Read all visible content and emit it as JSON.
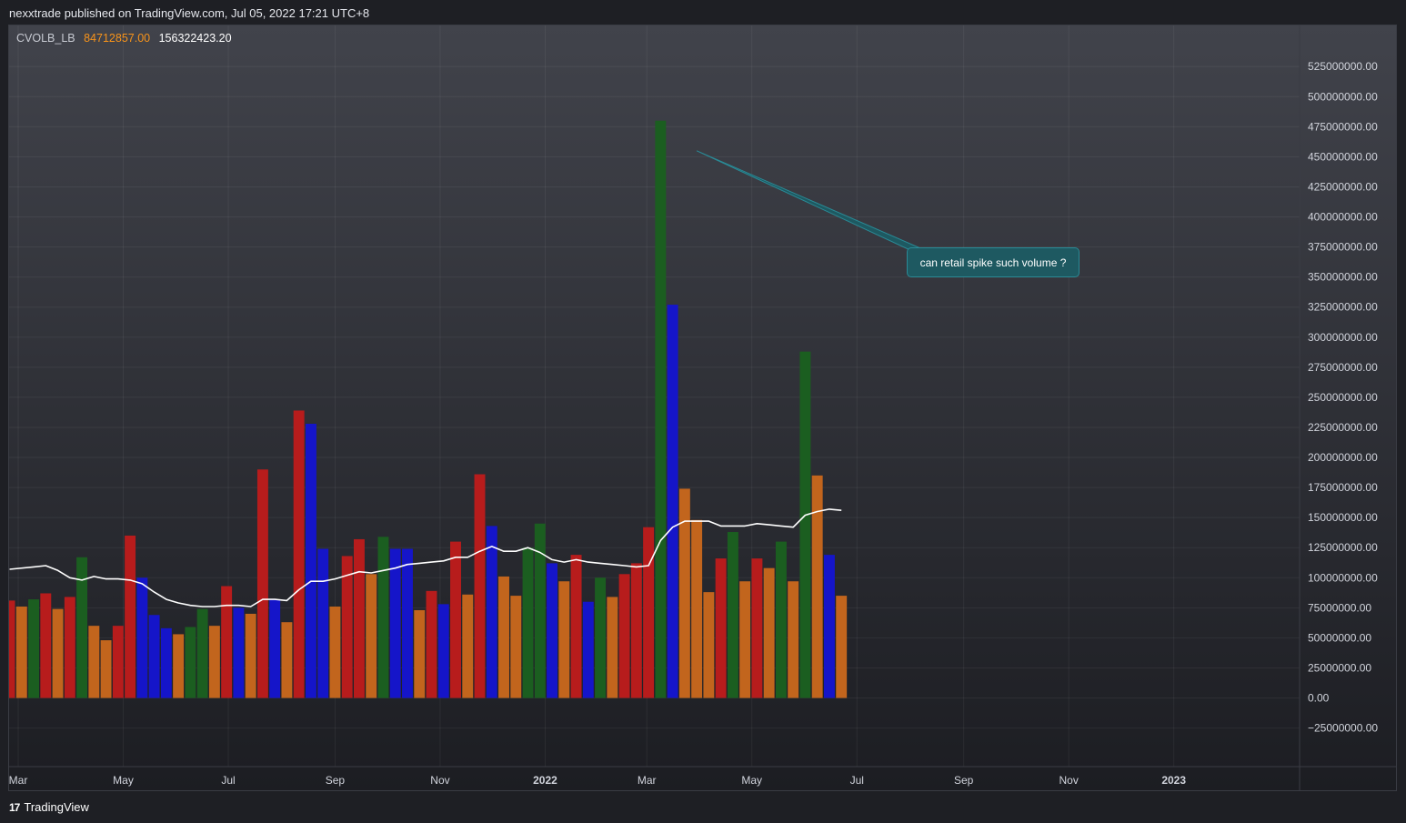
{
  "header": {
    "published": "nexxtrade published on TradingView.com, Jul 05, 2022 17:21 UTC+8"
  },
  "legend": {
    "name": "CVOLB_LB",
    "value1": "84712857.00",
    "value2": "156322423.20"
  },
  "annotation": {
    "text": "can retail spike such volume ?"
  },
  "footer": {
    "logo_mark": "17",
    "logo_text": "TradingView"
  },
  "colors": {
    "red": "#b71c1c",
    "orange": "#c2651d",
    "green": "#1b5e20",
    "blue": "#1515c9",
    "line": "#ffffff",
    "annotation_fill": "#1e5961",
    "annotation_border": "#2a8a96",
    "legend_value1": "#f7931a"
  },
  "chart_data": {
    "type": "bar",
    "title": "CVOLB_LB",
    "x_tick_labels": [
      "Mar",
      "May",
      "Jul",
      "Sep",
      "Nov",
      "2022",
      "Mar",
      "May",
      "Jul",
      "Sep",
      "Nov",
      "2023"
    ],
    "y_tick_labels": [
      "525000000.00",
      "500000000.00",
      "475000000.00",
      "450000000.00",
      "425000000.00",
      "400000000.00",
      "375000000.00",
      "350000000.00",
      "325000000.00",
      "300000000.00",
      "275000000.00",
      "250000000.00",
      "225000000.00",
      "200000000.00",
      "175000000.00",
      "150000000.00",
      "125000000.00",
      "100000000.00",
      "75000000.00",
      "50000000.00",
      "25000000.00",
      "0.00",
      "−25000000.00"
    ],
    "ylim": [
      -48000000,
      538000000
    ],
    "grid": true,
    "x_start": "2021-03-01",
    "x_end": "2023-02-14",
    "bar_width_days": 6.3,
    "bars": [
      {
        "date": "2021-02-24",
        "value": 81000000,
        "color": "red"
      },
      {
        "date": "2021-03-03",
        "value": 76000000,
        "color": "orange"
      },
      {
        "date": "2021-03-10",
        "value": 82000000,
        "color": "green"
      },
      {
        "date": "2021-03-17",
        "value": 87000000,
        "color": "red"
      },
      {
        "date": "2021-03-24",
        "value": 74000000,
        "color": "orange"
      },
      {
        "date": "2021-03-31",
        "value": 84000000,
        "color": "red"
      },
      {
        "date": "2021-04-07",
        "value": 117000000,
        "color": "green"
      },
      {
        "date": "2021-04-14",
        "value": 60000000,
        "color": "orange"
      },
      {
        "date": "2021-04-21",
        "value": 48000000,
        "color": "orange"
      },
      {
        "date": "2021-04-28",
        "value": 60000000,
        "color": "red"
      },
      {
        "date": "2021-05-05",
        "value": 135000000,
        "color": "red"
      },
      {
        "date": "2021-05-12",
        "value": 100000000,
        "color": "blue"
      },
      {
        "date": "2021-05-19",
        "value": 69000000,
        "color": "blue"
      },
      {
        "date": "2021-05-26",
        "value": 58000000,
        "color": "blue"
      },
      {
        "date": "2021-06-02",
        "value": 53000000,
        "color": "orange"
      },
      {
        "date": "2021-06-09",
        "value": 59000000,
        "color": "green"
      },
      {
        "date": "2021-06-16",
        "value": 74000000,
        "color": "green"
      },
      {
        "date": "2021-06-23",
        "value": 60000000,
        "color": "orange"
      },
      {
        "date": "2021-06-30",
        "value": 93000000,
        "color": "red"
      },
      {
        "date": "2021-07-07",
        "value": 75000000,
        "color": "blue"
      },
      {
        "date": "2021-07-14",
        "value": 70000000,
        "color": "orange"
      },
      {
        "date": "2021-07-21",
        "value": 190000000,
        "color": "red"
      },
      {
        "date": "2021-07-28",
        "value": 82000000,
        "color": "blue"
      },
      {
        "date": "2021-08-04",
        "value": 63000000,
        "color": "orange"
      },
      {
        "date": "2021-08-11",
        "value": 239000000,
        "color": "red"
      },
      {
        "date": "2021-08-18",
        "value": 228000000,
        "color": "blue"
      },
      {
        "date": "2021-08-25",
        "value": 124000000,
        "color": "blue"
      },
      {
        "date": "2021-09-01",
        "value": 76000000,
        "color": "orange"
      },
      {
        "date": "2021-09-08",
        "value": 118000000,
        "color": "red"
      },
      {
        "date": "2021-09-15",
        "value": 132000000,
        "color": "red"
      },
      {
        "date": "2021-09-22",
        "value": 103000000,
        "color": "orange"
      },
      {
        "date": "2021-09-29",
        "value": 134000000,
        "color": "green"
      },
      {
        "date": "2021-10-06",
        "value": 124000000,
        "color": "blue"
      },
      {
        "date": "2021-10-13",
        "value": 124000000,
        "color": "blue"
      },
      {
        "date": "2021-10-20",
        "value": 73000000,
        "color": "orange"
      },
      {
        "date": "2021-10-27",
        "value": 89000000,
        "color": "red"
      },
      {
        "date": "2021-11-03",
        "value": 78000000,
        "color": "blue"
      },
      {
        "date": "2021-11-10",
        "value": 130000000,
        "color": "red"
      },
      {
        "date": "2021-11-17",
        "value": 86000000,
        "color": "orange"
      },
      {
        "date": "2021-11-24",
        "value": 186000000,
        "color": "red"
      },
      {
        "date": "2021-12-01",
        "value": 143000000,
        "color": "blue"
      },
      {
        "date": "2021-12-08",
        "value": 101000000,
        "color": "orange"
      },
      {
        "date": "2021-12-15",
        "value": 85000000,
        "color": "orange"
      },
      {
        "date": "2021-12-22",
        "value": 125000000,
        "color": "green"
      },
      {
        "date": "2021-12-29",
        "value": 145000000,
        "color": "green"
      },
      {
        "date": "2022-01-05",
        "value": 112000000,
        "color": "blue"
      },
      {
        "date": "2022-01-12",
        "value": 97000000,
        "color": "orange"
      },
      {
        "date": "2022-01-19",
        "value": 119000000,
        "color": "red"
      },
      {
        "date": "2022-01-26",
        "value": 80000000,
        "color": "blue"
      },
      {
        "date": "2022-02-02",
        "value": 100000000,
        "color": "green"
      },
      {
        "date": "2022-02-09",
        "value": 84000000,
        "color": "orange"
      },
      {
        "date": "2022-02-16",
        "value": 103000000,
        "color": "red"
      },
      {
        "date": "2022-02-23",
        "value": 112000000,
        "color": "red"
      },
      {
        "date": "2022-03-02",
        "value": 142000000,
        "color": "red"
      },
      {
        "date": "2022-03-09",
        "value": 480000000,
        "color": "green"
      },
      {
        "date": "2022-03-16",
        "value": 327000000,
        "color": "blue"
      },
      {
        "date": "2022-03-23",
        "value": 174000000,
        "color": "orange"
      },
      {
        "date": "2022-03-30",
        "value": 148000000,
        "color": "orange"
      },
      {
        "date": "2022-04-06",
        "value": 88000000,
        "color": "orange"
      },
      {
        "date": "2022-04-13",
        "value": 116000000,
        "color": "red"
      },
      {
        "date": "2022-04-20",
        "value": 138000000,
        "color": "green"
      },
      {
        "date": "2022-04-27",
        "value": 97000000,
        "color": "orange"
      },
      {
        "date": "2022-05-04",
        "value": 116000000,
        "color": "red"
      },
      {
        "date": "2022-05-11",
        "value": 108000000,
        "color": "orange"
      },
      {
        "date": "2022-05-18",
        "value": 130000000,
        "color": "green"
      },
      {
        "date": "2022-05-25",
        "value": 97000000,
        "color": "orange"
      },
      {
        "date": "2022-06-01",
        "value": 288000000,
        "color": "green"
      },
      {
        "date": "2022-06-08",
        "value": 185000000,
        "color": "orange"
      },
      {
        "date": "2022-06-15",
        "value": 119000000,
        "color": "blue"
      },
      {
        "date": "2022-06-22",
        "value": 85000000,
        "color": "orange"
      }
    ],
    "average_line": [
      {
        "date": "2021-02-24",
        "value": 107000000
      },
      {
        "date": "2021-03-10",
        "value": 109000000
      },
      {
        "date": "2021-03-17",
        "value": 110000000
      },
      {
        "date": "2021-03-24",
        "value": 106000000
      },
      {
        "date": "2021-03-31",
        "value": 100000000
      },
      {
        "date": "2021-04-07",
        "value": 98000000
      },
      {
        "date": "2021-04-14",
        "value": 101000000
      },
      {
        "date": "2021-04-21",
        "value": 99000000
      },
      {
        "date": "2021-04-28",
        "value": 99000000
      },
      {
        "date": "2021-05-05",
        "value": 98000000
      },
      {
        "date": "2021-05-12",
        "value": 95000000
      },
      {
        "date": "2021-05-19",
        "value": 88000000
      },
      {
        "date": "2021-05-26",
        "value": 82000000
      },
      {
        "date": "2021-06-02",
        "value": 79000000
      },
      {
        "date": "2021-06-09",
        "value": 77000000
      },
      {
        "date": "2021-06-16",
        "value": 76000000
      },
      {
        "date": "2021-06-23",
        "value": 76000000
      },
      {
        "date": "2021-06-30",
        "value": 77000000
      },
      {
        "date": "2021-07-07",
        "value": 77000000
      },
      {
        "date": "2021-07-14",
        "value": 76000000
      },
      {
        "date": "2021-07-21",
        "value": 82000000
      },
      {
        "date": "2021-07-28",
        "value": 82000000
      },
      {
        "date": "2021-08-04",
        "value": 81000000
      },
      {
        "date": "2021-08-11",
        "value": 90000000
      },
      {
        "date": "2021-08-18",
        "value": 97000000
      },
      {
        "date": "2021-08-25",
        "value": 97000000
      },
      {
        "date": "2021-09-01",
        "value": 99000000
      },
      {
        "date": "2021-09-08",
        "value": 102000000
      },
      {
        "date": "2021-09-15",
        "value": 105000000
      },
      {
        "date": "2021-09-22",
        "value": 104000000
      },
      {
        "date": "2021-09-29",
        "value": 106000000
      },
      {
        "date": "2021-10-06",
        "value": 108000000
      },
      {
        "date": "2021-10-13",
        "value": 111000000
      },
      {
        "date": "2021-10-20",
        "value": 112000000
      },
      {
        "date": "2021-10-27",
        "value": 113000000
      },
      {
        "date": "2021-11-03",
        "value": 114000000
      },
      {
        "date": "2021-11-10",
        "value": 117000000
      },
      {
        "date": "2021-11-17",
        "value": 117000000
      },
      {
        "date": "2021-11-24",
        "value": 122000000
      },
      {
        "date": "2021-12-01",
        "value": 126000000
      },
      {
        "date": "2021-12-08",
        "value": 122000000
      },
      {
        "date": "2021-12-15",
        "value": 122000000
      },
      {
        "date": "2021-12-22",
        "value": 125000000
      },
      {
        "date": "2021-12-29",
        "value": 121000000
      },
      {
        "date": "2022-01-05",
        "value": 115000000
      },
      {
        "date": "2022-01-12",
        "value": 113000000
      },
      {
        "date": "2022-01-19",
        "value": 115000000
      },
      {
        "date": "2022-01-26",
        "value": 113000000
      },
      {
        "date": "2022-02-02",
        "value": 112000000
      },
      {
        "date": "2022-02-09",
        "value": 111000000
      },
      {
        "date": "2022-02-16",
        "value": 110000000
      },
      {
        "date": "2022-02-23",
        "value": 109000000
      },
      {
        "date": "2022-03-02",
        "value": 110000000
      },
      {
        "date": "2022-03-09",
        "value": 131000000
      },
      {
        "date": "2022-03-16",
        "value": 142000000
      },
      {
        "date": "2022-03-23",
        "value": 147000000
      },
      {
        "date": "2022-03-30",
        "value": 147000000
      },
      {
        "date": "2022-04-06",
        "value": 147000000
      },
      {
        "date": "2022-04-13",
        "value": 143000000
      },
      {
        "date": "2022-04-20",
        "value": 143000000
      },
      {
        "date": "2022-04-27",
        "value": 143000000
      },
      {
        "date": "2022-05-04",
        "value": 145000000
      },
      {
        "date": "2022-05-11",
        "value": 144000000
      },
      {
        "date": "2022-05-18",
        "value": 143000000
      },
      {
        "date": "2022-05-25",
        "value": 142000000
      },
      {
        "date": "2022-06-01",
        "value": 152000000
      },
      {
        "date": "2022-06-08",
        "value": 155000000
      },
      {
        "date": "2022-06-15",
        "value": 157000000
      },
      {
        "date": "2022-06-22",
        "value": 156000000
      }
    ]
  }
}
